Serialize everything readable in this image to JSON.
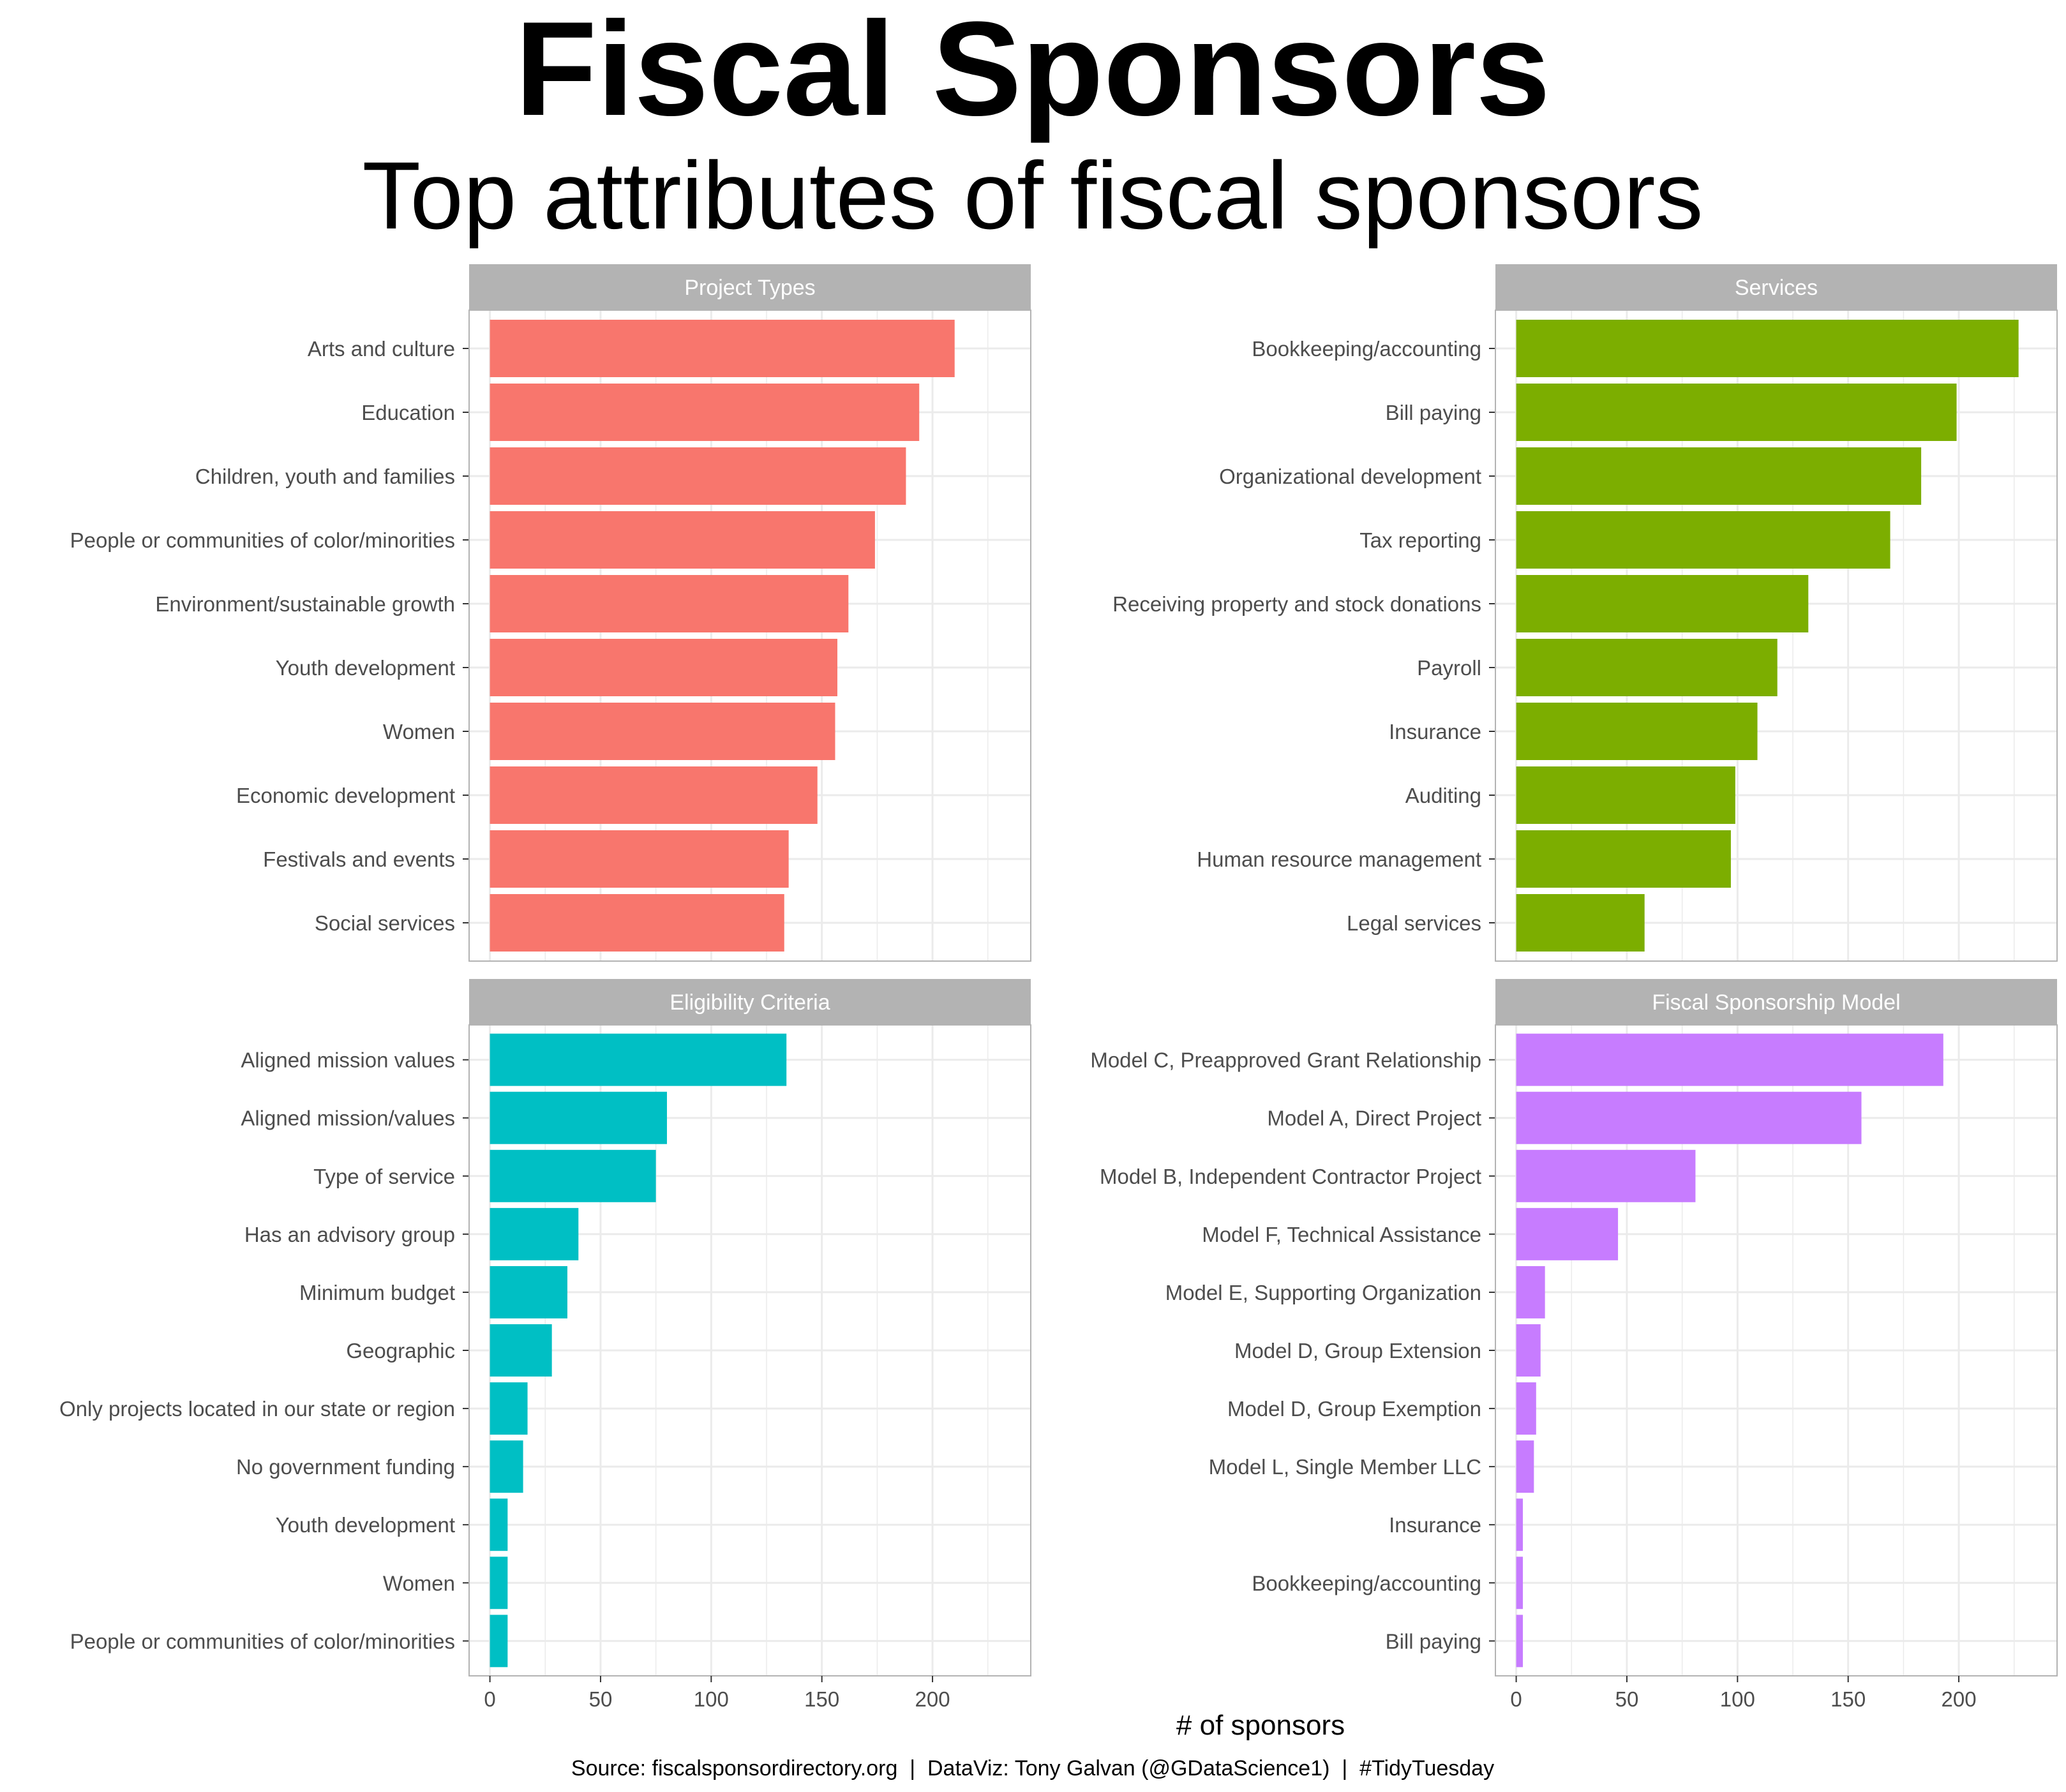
{
  "title": "Fiscal Sponsors",
  "subtitle": "Top attributes of fiscal sponsors",
  "xlabel": "# of sponsors",
  "caption": "Source: fiscalsponsordirectory.org  |  DataViz: Tony Galvan (@GDataScience1)  |  #TidyTuesday",
  "colors": {
    "strip_bg": "#b3b3b3",
    "grid": "#ebebeb",
    "panel_border": "#b3b3b3"
  },
  "chart_data": {
    "type": "bar",
    "orientation": "horizontal",
    "xlim": [
      0,
      235
    ],
    "x_ticks": [
      0,
      50,
      100,
      150,
      200
    ],
    "grid": true,
    "panels": [
      {
        "name": "Project Types",
        "color": "#f8766d",
        "categories": [
          "Arts and culture",
          "Education",
          "Children, youth and families",
          "People or communities of color/minorities",
          "Environment/sustainable growth",
          "Youth development",
          "Women",
          "Economic development",
          "Festivals and events",
          "Social services"
        ],
        "values": [
          210,
          194,
          188,
          174,
          162,
          157,
          156,
          148,
          135,
          133
        ]
      },
      {
        "name": "Services",
        "color": "#7cae00",
        "categories": [
          "Bookkeeping/accounting",
          "Bill paying",
          "Organizational development",
          "Tax reporting",
          "Receiving property and stock donations",
          "Payroll",
          "Insurance",
          "Auditing",
          "Human resource management",
          "Legal services"
        ],
        "values": [
          227,
          199,
          183,
          169,
          132,
          118,
          109,
          99,
          97,
          58
        ]
      },
      {
        "name": "Eligibility Criteria",
        "color": "#00bfc4",
        "categories": [
          "Aligned mission values",
          "Aligned mission/values",
          "Type of service",
          "Has an advisory group",
          "Minimum budget",
          "Geographic",
          "Only projects located in our state or region",
          "No government funding",
          "Youth development",
          "Women",
          "People or communities of color/minorities"
        ],
        "values": [
          134,
          80,
          75,
          40,
          35,
          28,
          17,
          15,
          8,
          8,
          8
        ]
      },
      {
        "name": "Fiscal Sponsorship Model",
        "color": "#c77cff",
        "categories": [
          "Model C, Preapproved Grant Relationship",
          "Model A, Direct Project",
          "Model B, Independent Contractor Project",
          "Model F, Technical Assistance",
          "Model E, Supporting Organization",
          "Model D, Group Extension",
          "Model D, Group Exemption",
          "Model L, Single Member LLC",
          "Insurance",
          "Bookkeeping/accounting",
          "Bill paying"
        ],
        "values": [
          193,
          156,
          81,
          46,
          13,
          11,
          9,
          8,
          3,
          3,
          3
        ]
      }
    ]
  }
}
